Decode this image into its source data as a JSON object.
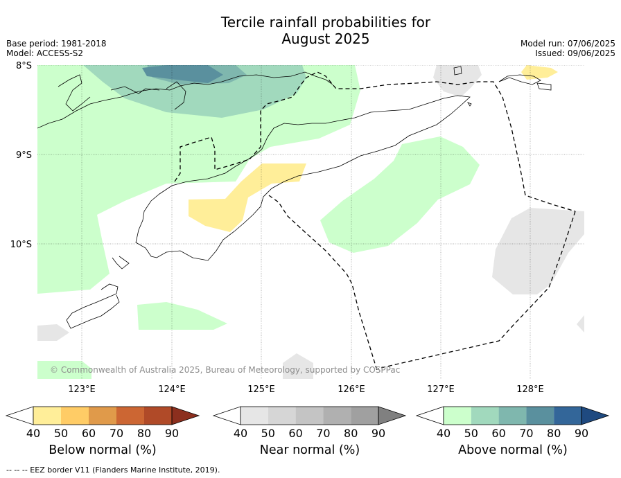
{
  "title": {
    "line1": "Tercile rainfall probabilities for",
    "line2": "August 2025"
  },
  "meta": {
    "base_period": "Base period: 1981-2018",
    "model": "Model: ACCESS-S2",
    "model_run": "Model run: 07/06/2025",
    "issued": "Issued: 09/06/2025"
  },
  "map": {
    "lat_labels": [
      "8°S",
      "9°S",
      "10°S"
    ],
    "lon_labels": [
      "123°E",
      "124°E",
      "125°E",
      "126°E",
      "127°E",
      "128°E"
    ],
    "copyright": "© Commonwealth of Australia 2025, Bureau of Meteorology, supported by COSPPac",
    "colors": {
      "ocean": "#ffffff",
      "above_40": "#ccffcc",
      "above_50": "#a1d9bd",
      "above_60": "#7fb7ae",
      "above_70": "#5a909e",
      "near_40": "#e6e6e6",
      "below_40": "#ffee99"
    }
  },
  "colorbars": [
    {
      "name": "below",
      "title": "Below normal (%)",
      "ticks": [
        "40",
        "50",
        "60",
        "70",
        "80",
        "90"
      ],
      "colors": [
        "#ffffff",
        "#ffee99",
        "#ffcc66",
        "#e09a4a",
        "#cc6633",
        "#b04a28",
        "#8c2f1e"
      ]
    },
    {
      "name": "near",
      "title": "Near normal (%)",
      "ticks": [
        "40",
        "50",
        "60",
        "70",
        "80",
        "90"
      ],
      "colors": [
        "#ffffff",
        "#e6e6e6",
        "#d6d6d6",
        "#c4c4c4",
        "#b0b0b0",
        "#a0a0a0",
        "#808080"
      ]
    },
    {
      "name": "above",
      "title": "Above normal (%)",
      "ticks": [
        "40",
        "50",
        "60",
        "70",
        "80",
        "90"
      ],
      "colors": [
        "#ffffff",
        "#ccffcc",
        "#a1d9bd",
        "#7fb7ae",
        "#5a909e",
        "#336699",
        "#1f4a80"
      ]
    }
  ],
  "footer": "--  --  -- EEZ border V11 (Flanders Marine Institute, 2019)."
}
